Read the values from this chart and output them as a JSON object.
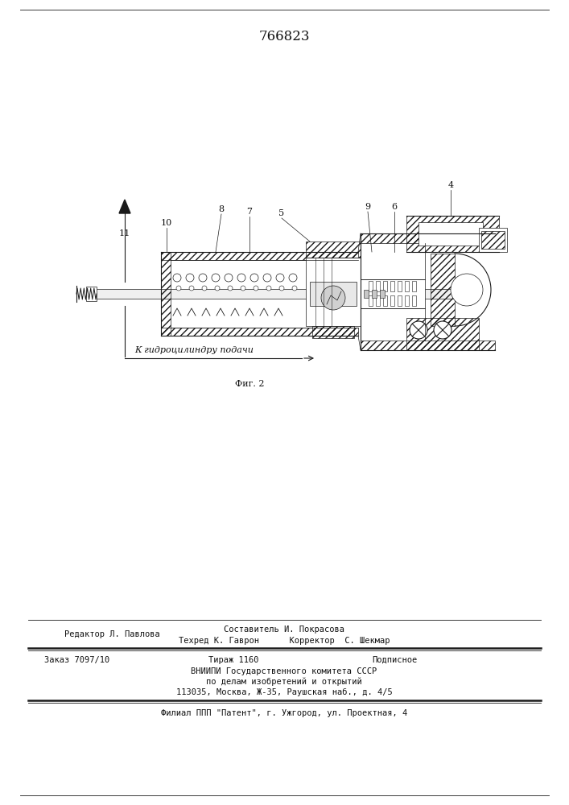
{
  "patent_number": "766823",
  "fig_caption": "Фиг. 2",
  "arrow_label": "К гидроцилиндру подачи",
  "background_color": "#ffffff",
  "line_color": "#1a1a1a",
  "text_color": "#111111",
  "footer_line1_left": "Редактор Л. Павлова",
  "footer_line1_center_top": "Составитель И. Покрасова",
  "footer_line1_center_bot": "Техред К. Гаврон      Корректор  С. Шекмар",
  "footer_line2_left": "Заказ 7097/10",
  "footer_line2_center": "Тираж 1160",
  "footer_line2_right": "Подписное",
  "footer_line3": "ВНИИПИ Государственного комитета СССР",
  "footer_line4": "по делам изобретений и открытий",
  "footer_line5": "113035, Москва, Ж-35, Раушская наб., д. 4/5",
  "footer_line6": "Филиал ППП \"Патент\", г. Ужгород, ул. Проектная, 4",
  "font_size_patent": 12,
  "font_size_labels": 8,
  "font_size_footer": 7.5,
  "font_size_caption": 8
}
